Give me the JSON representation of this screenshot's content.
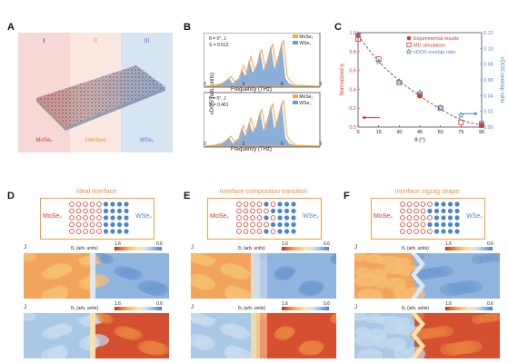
{
  "panel_labels": [
    "A",
    "B",
    "C",
    "D",
    "E",
    "F"
  ],
  "panelA": {
    "regions": [
      {
        "numeral": "I",
        "name": "MoSe₂",
        "color": "#d23c2c"
      },
      {
        "numeral": "II",
        "name": "Interface",
        "color": "#e8923a"
      },
      {
        "numeral": "III",
        "name": "WSe₂",
        "color": "#4a86c8"
      }
    ]
  },
  "panelB": {
    "ylabel": "vDOS (arb. units)",
    "xlabel": "Frequency (THz)",
    "plots": [
      {
        "theta": "θ = 0°, J",
        "S": "S = 0.512"
      },
      {
        "theta": "θ = 0°, J",
        "S": "S = 0.461"
      }
    ],
    "legend": [
      "MoSe₂",
      "WSe₂"
    ],
    "xticks": [
      "0",
      "3",
      "6",
      "9"
    ],
    "colors": {
      "MoSe2": "#f5a84a",
      "WSe2": "#6f9bd0"
    }
  },
  "chart_data": {
    "type": "scatter",
    "xlabel": "θ (°)",
    "ylabel": "Normalized η",
    "ylabel_right": "vDOS overlap ratio",
    "xlim": [
      0,
      90
    ],
    "ylim": [
      0,
      1.0
    ],
    "ylim_right": [
      0,
      0.12
    ],
    "xticks": [
      0,
      15,
      30,
      45,
      60,
      75,
      90
    ],
    "yticks": [
      0,
      0.2,
      0.4,
      0.6,
      0.8,
      1.0
    ],
    "yticks_right": [
      0,
      0.02,
      0.04,
      0.06,
      0.08,
      0.1,
      0.12
    ],
    "legend": [
      "Experimental results",
      "MD simulation",
      "vDOS overlap ratio"
    ],
    "series": [
      {
        "name": "Experimental results",
        "x": [
          0,
          45,
          90
        ],
        "y": [
          0.97,
          0.33,
          0.02
        ]
      },
      {
        "name": "MD simulation",
        "x": [
          0,
          15,
          30,
          45,
          60,
          75,
          90
        ],
        "y": [
          0.93,
          0.72,
          0.47,
          0.34,
          0.2,
          0.05,
          0.02
        ]
      },
      {
        "name": "vDOS overlap ratio",
        "x": [
          0,
          15,
          30,
          45,
          60,
          75,
          90
        ],
        "y": [
          0.118,
          0.083,
          0.058,
          0.044,
          0.025,
          0.015,
          0.006
        ]
      }
    ],
    "fit_curve": {
      "x": [
        0,
        10,
        20,
        30,
        40,
        50,
        60,
        70,
        80,
        90
      ],
      "y": [
        0.97,
        0.78,
        0.62,
        0.49,
        0.38,
        0.28,
        0.19,
        0.11,
        0.05,
        0.02
      ]
    }
  },
  "bottom": {
    "panels": [
      {
        "title": "Ideal interface",
        "left_label": "MoSe₂",
        "right_label": "WSe₂"
      },
      {
        "title": "Interface composition transition",
        "left_label": "MoSe₂",
        "right_label": "WSe₂"
      },
      {
        "title": "Interface zigzag shape",
        "left_label": "MoSe₂",
        "right_label": "WSe₂"
      }
    ],
    "map_label_top": "θ₁ (arb. units)",
    "map_label_bottom": "θ₂ (arb. units)",
    "colorbar_max": "1.6",
    "colorbar_min": "0.6",
    "direction_top": "J",
    "direction_bottom": "J"
  }
}
